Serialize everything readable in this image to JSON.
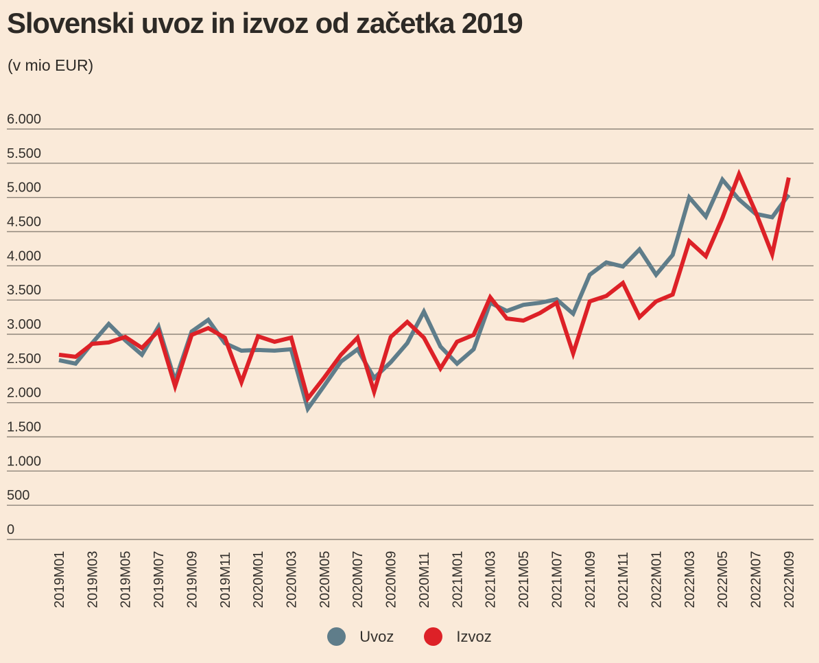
{
  "header": {
    "title": "Slovenski uvoz in izvoz od začetka 2019",
    "subtitle": "(v mio EUR)"
  },
  "legend": [
    {
      "label": "Uvoz",
      "color": "#5f7d8a"
    },
    {
      "label": "Izvoz",
      "color": "#dd2127"
    }
  ],
  "colors": {
    "background": "#faead9",
    "gridline": "#8f867b",
    "axis_text": "#33302c",
    "title_text": "#2d2a26"
  },
  "chart_data": {
    "type": "line",
    "title": "Slovenski uvoz in izvoz od začetka 2019",
    "subtitle": "(v mio EUR)",
    "xlabel": "",
    "ylabel": "v mio EUR",
    "ylim": [
      0,
      6000
    ],
    "grid": true,
    "legend_position": "bottom",
    "y_ticks": [
      0,
      500,
      1000,
      1500,
      2000,
      2500,
      3000,
      3500,
      4000,
      4500,
      5000,
      5500,
      6000
    ],
    "y_tick_labels": [
      "0",
      "500",
      "1.000",
      "1.500",
      "2.000",
      "2.500",
      "3.000",
      "3.500",
      "4.000",
      "4.500",
      "5.000",
      "5.500",
      "6.000"
    ],
    "categories": [
      "2019M01",
      "2019M02",
      "2019M03",
      "2019M04",
      "2019M05",
      "2019M06",
      "2019M07",
      "2019M08",
      "2019M09",
      "2019M10",
      "2019M11",
      "2019M12",
      "2020M01",
      "2020M02",
      "2020M03",
      "2020M04",
      "2020M05",
      "2020M06",
      "2020M07",
      "2020M08",
      "2020M09",
      "2020M10",
      "2020M11",
      "2020M12",
      "2021M01",
      "2021M02",
      "2021M03",
      "2021M04",
      "2021M05",
      "2021M06",
      "2021M07",
      "2021M08",
      "2021M09",
      "2021M10",
      "2021M11",
      "2021M12",
      "2022M01",
      "2022M02",
      "2022M03",
      "2022M04",
      "2022M05",
      "2022M06",
      "2022M07",
      "2022M08",
      "2022M09"
    ],
    "x_ticks_shown": [
      "2019M01",
      "2019M03",
      "2019M05",
      "2019M07",
      "2019M09",
      "2019M11",
      "2020M01",
      "2020M03",
      "2020M05",
      "2020M07",
      "2020M09",
      "2020M11",
      "2021M01",
      "2021M03",
      "2021M05",
      "2021M07",
      "2021M09",
      "2021M11",
      "2022M01",
      "2022M03",
      "2022M05",
      "2022M07",
      "2022M09"
    ],
    "series": [
      {
        "name": "Uvoz",
        "color": "#5f7d8a",
        "values": [
          2620,
          2570,
          2870,
          3150,
          2910,
          2700,
          3110,
          2320,
          3040,
          3210,
          2870,
          2760,
          2770,
          2760,
          2780,
          1910,
          2250,
          2600,
          2780,
          2360,
          2590,
          2870,
          3330,
          2820,
          2570,
          2780,
          3460,
          3340,
          3430,
          3460,
          3510,
          3300,
          3870,
          4050,
          3990,
          4240,
          3870,
          4160,
          5000,
          4720,
          5260,
          4970,
          4760,
          4710,
          5040
        ]
      },
      {
        "name": "Izvoz",
        "color": "#dd2127",
        "values": [
          2700,
          2670,
          2860,
          2880,
          2960,
          2800,
          3050,
          2240,
          2990,
          3090,
          2950,
          2300,
          2970,
          2890,
          2950,
          2060,
          2370,
          2700,
          2950,
          2160,
          2960,
          3180,
          2950,
          2500,
          2890,
          2990,
          3540,
          3230,
          3200,
          3310,
          3460,
          2720,
          3480,
          3560,
          3750,
          3250,
          3480,
          3580,
          4360,
          4140,
          4700,
          5340,
          4790,
          4170,
          5290
        ]
      }
    ]
  }
}
